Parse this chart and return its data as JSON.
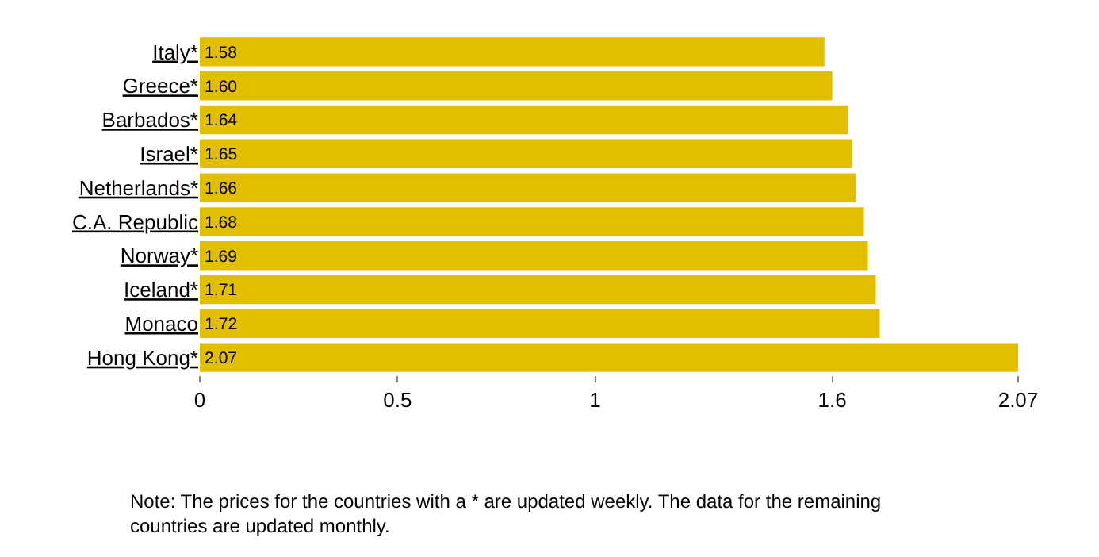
{
  "chart_data": {
    "type": "bar",
    "orientation": "horizontal",
    "categories": [
      "Italy*",
      "Greece*",
      "Barbados*",
      "Israel*",
      "Netherlands*",
      "C.A. Republic",
      "Norway*",
      "Iceland*",
      "Monaco",
      "Hong Kong*"
    ],
    "values": [
      1.58,
      1.6,
      1.64,
      1.65,
      1.66,
      1.68,
      1.69,
      1.71,
      1.72,
      2.07
    ],
    "color": "#e2be00",
    "xlim": [
      0,
      2.07
    ],
    "xticks": [
      0,
      0.5,
      1,
      1.6,
      2.07
    ],
    "value_labels": [
      "1.58",
      "1.60",
      "1.64",
      "1.65",
      "1.66",
      "1.68",
      "1.69",
      "1.71",
      "1.72",
      "2.07"
    ],
    "annotations": [
      "Note: The prices for the countries with a * are updated weekly. The data for the remaining countries are updated monthly."
    ]
  }
}
